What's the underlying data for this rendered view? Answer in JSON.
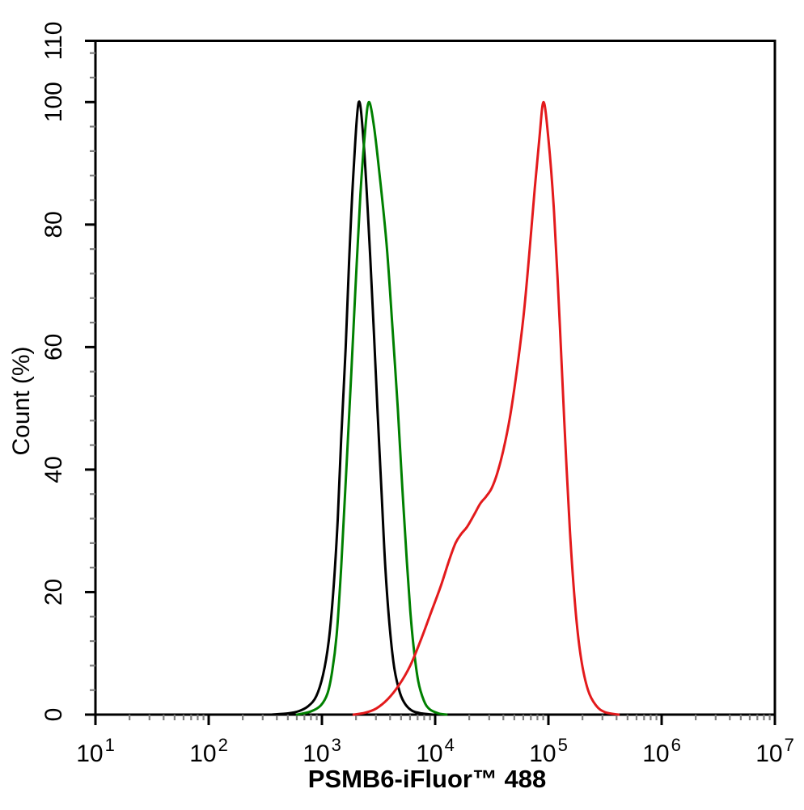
{
  "figure": {
    "title": "",
    "legend": "none"
  },
  "chart_data": {
    "type": "line",
    "subtype": "flow-cytometry-overlay-histogram",
    "title": "",
    "xlabel": "PSMB6-iFluor™ 488",
    "ylabel": "Count (%)",
    "x_scale": "log10",
    "x_range_log10": [
      1,
      7
    ],
    "x_major_tick_exponents": [
      1,
      2,
      3,
      4,
      5,
      6,
      7
    ],
    "x_minor_ticks": "mantissas 2-9 of each decade",
    "ylim": [
      0,
      110
    ],
    "y_major_ticks": [
      0,
      20,
      40,
      60,
      80,
      100,
      110
    ],
    "y_minor_tick_step": 4,
    "grid": false,
    "frame_box": true,
    "colors": {
      "axis": "#000000",
      "minor_tick": "#7f7f7f",
      "black_series": "#000000",
      "green_series": "#008000",
      "red_series": "#e31a1c"
    },
    "series": [
      {
        "name": "black",
        "color_key": "black_series",
        "peak_log10_x": 3.325,
        "peak_percent": 100,
        "points": [
          [
            2.55,
            0
          ],
          [
            2.7,
            0.2
          ],
          [
            2.8,
            0.6
          ],
          [
            2.88,
            1.4
          ],
          [
            2.95,
            3
          ],
          [
            3.01,
            6.5
          ],
          [
            3.06,
            12
          ],
          [
            3.1,
            20
          ],
          [
            3.14,
            32
          ],
          [
            3.17,
            45
          ],
          [
            3.21,
            60
          ],
          [
            3.24,
            74
          ],
          [
            3.28,
            89
          ],
          [
            3.325,
            100
          ],
          [
            3.37,
            93
          ],
          [
            3.42,
            77
          ],
          [
            3.46,
            62
          ],
          [
            3.49,
            50
          ],
          [
            3.53,
            35
          ],
          [
            3.56,
            24
          ],
          [
            3.6,
            14
          ],
          [
            3.64,
            7.5
          ],
          [
            3.69,
            3.5
          ],
          [
            3.74,
            1.6
          ],
          [
            3.8,
            0.6
          ],
          [
            3.88,
            0.2
          ],
          [
            3.98,
            0
          ]
        ]
      },
      {
        "name": "green",
        "color_key": "green_series",
        "peak_log10_x": 3.414,
        "peak_percent": 100,
        "points": [
          [
            2.78,
            0
          ],
          [
            2.9,
            0.5
          ],
          [
            2.99,
            1.5
          ],
          [
            3.05,
            3.5
          ],
          [
            3.09,
            7
          ],
          [
            3.13,
            13
          ],
          [
            3.17,
            24
          ],
          [
            3.21,
            38
          ],
          [
            3.26,
            56
          ],
          [
            3.3,
            71
          ],
          [
            3.34,
            85
          ],
          [
            3.38,
            95
          ],
          [
            3.414,
            100
          ],
          [
            3.46,
            96
          ],
          [
            3.51,
            88
          ],
          [
            3.57,
            77
          ],
          [
            3.62,
            64
          ],
          [
            3.67,
            50
          ],
          [
            3.71,
            37
          ],
          [
            3.75,
            25
          ],
          [
            3.78,
            17
          ],
          [
            3.81,
            11
          ],
          [
            3.85,
            5.5
          ],
          [
            3.9,
            2.3
          ],
          [
            3.95,
            0.9
          ],
          [
            4.03,
            0.2
          ],
          [
            4.1,
            0
          ]
        ]
      },
      {
        "name": "red",
        "color_key": "red_series",
        "peak_log10_x": 4.957,
        "peak_percent": 100,
        "points": [
          [
            3.28,
            0
          ],
          [
            3.38,
            0.3
          ],
          [
            3.48,
            1
          ],
          [
            3.58,
            2.5
          ],
          [
            3.68,
            4.8
          ],
          [
            3.78,
            8
          ],
          [
            3.88,
            12.5
          ],
          [
            3.97,
            17
          ],
          [
            4.05,
            21
          ],
          [
            4.12,
            25
          ],
          [
            4.18,
            28
          ],
          [
            4.23,
            29.5
          ],
          [
            4.28,
            30.6
          ],
          [
            4.34,
            32.5
          ],
          [
            4.4,
            34.5
          ],
          [
            4.45,
            35.6
          ],
          [
            4.5,
            37
          ],
          [
            4.55,
            39.5
          ],
          [
            4.6,
            43
          ],
          [
            4.66,
            48.5
          ],
          [
            4.72,
            56
          ],
          [
            4.78,
            65
          ],
          [
            4.83,
            75
          ],
          [
            4.88,
            86
          ],
          [
            4.92,
            94
          ],
          [
            4.957,
            100
          ],
          [
            5.0,
            94
          ],
          [
            5.05,
            82
          ],
          [
            5.1,
            64
          ],
          [
            5.14,
            48
          ],
          [
            5.19,
            30
          ],
          [
            5.24,
            17
          ],
          [
            5.29,
            9
          ],
          [
            5.35,
            4
          ],
          [
            5.42,
            1.5
          ],
          [
            5.5,
            0.4
          ],
          [
            5.62,
            0
          ]
        ]
      }
    ]
  }
}
